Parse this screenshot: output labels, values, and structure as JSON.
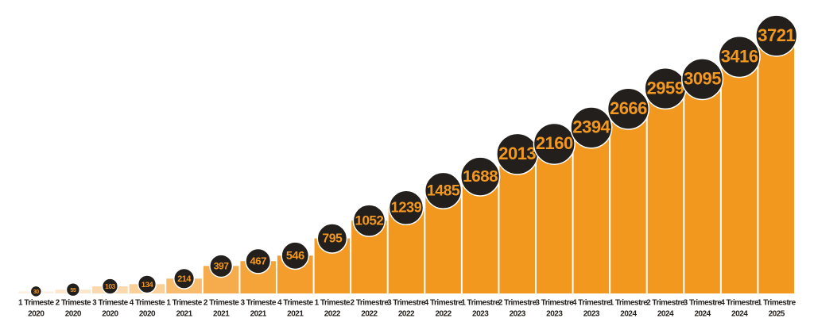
{
  "chart_data": {
    "type": "bar",
    "categories": [
      [
        "1 Trimeste",
        "2020"
      ],
      [
        "2 Trimeste",
        "2020"
      ],
      [
        "3 Trimeste",
        "2020"
      ],
      [
        "4 Trimeste",
        "2020"
      ],
      [
        "1 Trimeste",
        "2021"
      ],
      [
        "2 Trimeste",
        "2021"
      ],
      [
        "3 Trimeste",
        "2021"
      ],
      [
        "4 Trimeste",
        "2021"
      ],
      [
        "1 Trimeste",
        "2022"
      ],
      [
        "2 Trimestre",
        "2022"
      ],
      [
        "3 Trimestre",
        "2022"
      ],
      [
        "4 Trimestre",
        "2022"
      ],
      [
        "1 Trimestre",
        "2023"
      ],
      [
        "2 Trimestre",
        "2023"
      ],
      [
        "3 Trimestre",
        "2023"
      ],
      [
        "4 Trimestre",
        "2023"
      ],
      [
        "1 Trimestre",
        "2024"
      ],
      [
        "2 Trimestre",
        "2024"
      ],
      [
        "3 Trimestre",
        "2024"
      ],
      [
        "4 Trimestre",
        "2024"
      ],
      [
        "1 Trimestre",
        "2025"
      ]
    ],
    "values": [
      30,
      55,
      103,
      134,
      214,
      397,
      467,
      546,
      795,
      1052,
      1239,
      1485,
      1688,
      2013,
      2160,
      2394,
      2666,
      2959,
      3095,
      3416,
      3721
    ],
    "colors": [
      "#fdf1e2",
      "#fce6cc",
      "#fbd9ae",
      "#fbcf98",
      "#f8bb6c",
      "#f6ac4c",
      "#f5a43a",
      "#f49d2c",
      "#f39a24",
      "#f39820",
      "#f3981f",
      "#f3981f",
      "#f3981f",
      "#f3981f",
      "#f3981f",
      "#f3981f",
      "#f3981f",
      "#f3981f",
      "#f3981f",
      "#f3981f",
      "#f3981f"
    ],
    "label_color": "#f3981f",
    "circle_color": "#231f1c"
  }
}
